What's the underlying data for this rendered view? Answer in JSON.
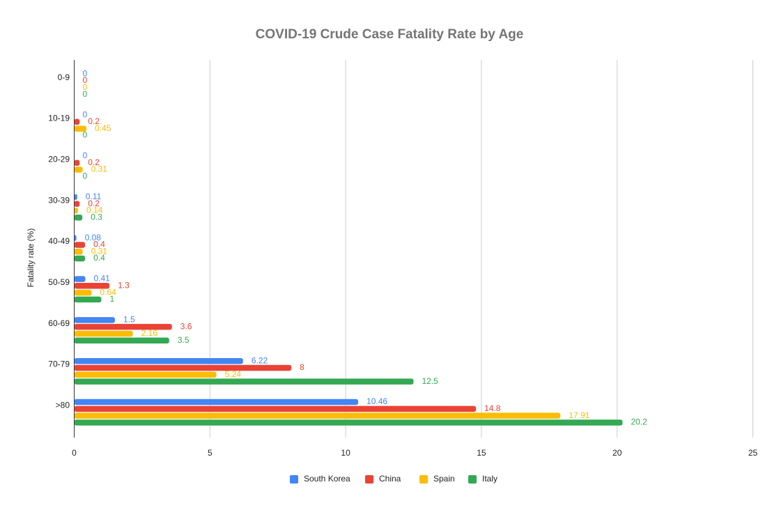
{
  "chart_data": {
    "type": "bar",
    "orientation": "horizontal",
    "title": "COVID-19 Crude Case Fatality Rate by Age",
    "xlabel": "",
    "ylabel": "Fatality rate (%)",
    "categories": [
      "0-9",
      "10-19",
      "20-29",
      "30-39",
      "40-49",
      "50-59",
      "60-69",
      "70-79",
      ">80"
    ],
    "xlim": [
      0,
      25
    ],
    "x_ticks": [
      0,
      5,
      10,
      15,
      20,
      25
    ],
    "grid": true,
    "legend_position": "bottom",
    "series": [
      {
        "name": "South Korea",
        "color": "#4285f4",
        "values": [
          0,
          0,
          0,
          0.11,
          0.08,
          0.41,
          1.5,
          6.22,
          10.46
        ]
      },
      {
        "name": "China",
        "color": "#ea4335",
        "values": [
          0,
          0.2,
          0.2,
          0.2,
          0.4,
          1.3,
          3.6,
          8,
          14.8
        ]
      },
      {
        "name": "Spain",
        "color": "#fbbc04",
        "values": [
          0,
          0.45,
          0.31,
          0.14,
          0.31,
          0.64,
          2.16,
          5.24,
          17.91
        ]
      },
      {
        "name": "Italy",
        "color": "#34a853",
        "values": [
          0,
          0,
          0,
          0.3,
          0.4,
          1,
          3.5,
          12.5,
          20.2
        ]
      }
    ]
  }
}
